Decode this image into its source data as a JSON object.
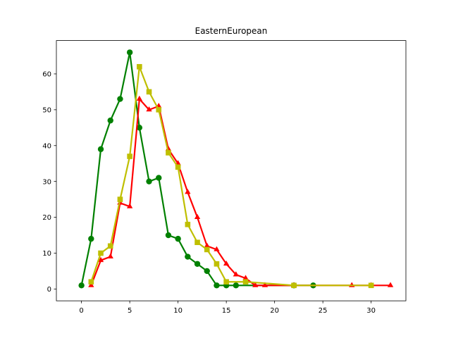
{
  "chart_data": {
    "type": "line",
    "title": "EasternEuropean",
    "xlabel": "",
    "ylabel": "",
    "xlim": [
      -2.6,
      33.6
    ],
    "ylim": [
      -3.3,
      69.3
    ],
    "xticks": [
      0,
      5,
      10,
      15,
      20,
      25,
      30
    ],
    "yticks": [
      0,
      10,
      20,
      30,
      40,
      50,
      60
    ],
    "grid": false,
    "series": [
      {
        "color": "#008000",
        "marker": "circle",
        "x": [
          0,
          1,
          2,
          3,
          4,
          5,
          6,
          7,
          8,
          9,
          10,
          11,
          12,
          13,
          14,
          15,
          16,
          22,
          24
        ],
        "y": [
          1,
          14,
          39,
          47,
          53,
          66,
          45,
          30,
          31,
          15,
          14,
          9,
          7,
          5,
          1,
          1,
          1,
          1,
          1
        ]
      },
      {
        "color": "#ff0000",
        "marker": "triangle",
        "x": [
          1,
          2,
          3,
          4,
          5,
          6,
          7,
          8,
          9,
          10,
          11,
          12,
          13,
          14,
          15,
          16,
          17,
          18,
          19,
          22,
          28,
          30,
          32
        ],
        "y": [
          1,
          8,
          9,
          24,
          23,
          53,
          50,
          51,
          39,
          35,
          27,
          20,
          12,
          11,
          7,
          4,
          3,
          1,
          1,
          1,
          1,
          1,
          1
        ]
      },
      {
        "color": "#bfbf00",
        "marker": "square",
        "x": [
          1,
          2,
          3,
          4,
          5,
          6,
          7,
          8,
          9,
          10,
          11,
          12,
          13,
          14,
          15,
          17,
          22,
          30
        ],
        "y": [
          2,
          10,
          12,
          25,
          37,
          62,
          55,
          50,
          38,
          34,
          18,
          13,
          11,
          7,
          2,
          2,
          1,
          1
        ]
      }
    ]
  }
}
